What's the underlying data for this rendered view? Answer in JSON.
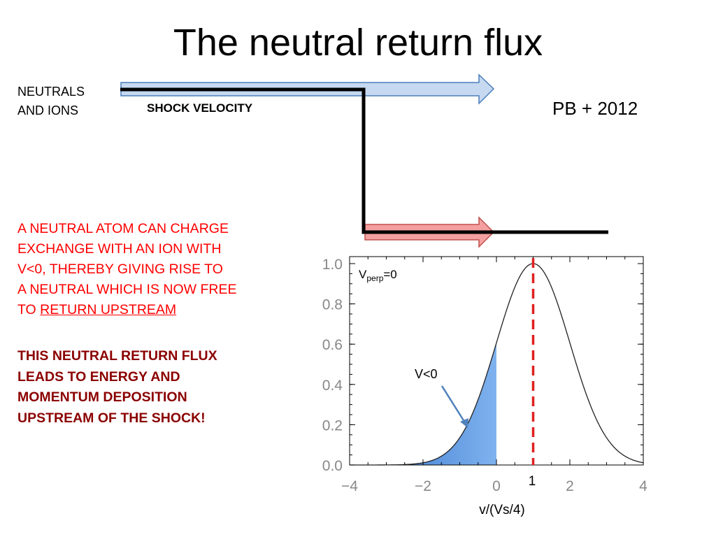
{
  "slide": {
    "title": "The neutral return flux",
    "neutrals_line1": "NEUTRALS",
    "neutrals_line2": "AND IONS",
    "shock_velocity": "SHOCK VELOCITY",
    "citation": "PB + 2012",
    "red_para_lines": [
      "A NEUTRAL ATOM CAN CHARGE",
      "EXCHANGE WITH AN ION WITH",
      "V<0, THEREBY GIVING RISE TO",
      "A NEUTRAL WHICH IS NOW FREE"
    ],
    "red_para_last_prefix": "TO ",
    "red_para_last_underlined": "RETURN UPSTREAM",
    "dark_para_lines": [
      "THIS NEUTRAL RETURN FLUX",
      "LEADS TO ENERGY AND",
      "MOMENTUM DEPOSITION",
      "UPSTREAM OF THE SHOCK!"
    ],
    "colors": {
      "title": "#000000",
      "red_text": "#ff0000",
      "dark_red_text": "#8b0000",
      "upper_arrow_fill": "#c6d9f1",
      "upper_arrow_stroke": "#4a7ebb",
      "lower_arrow_fill": "#f4a0a0",
      "lower_arrow_stroke": "#c0504d",
      "shaded_fill": "#3e7fd6",
      "peak_line": "#e02020",
      "annotation_arrow": "#4f81bd"
    }
  },
  "chart_data": {
    "type": "line",
    "description_free": true,
    "xlabel": "v/(Vs/4)",
    "ylabel": "",
    "xlim": [
      -4,
      4
    ],
    "ylim": [
      0,
      1.0
    ],
    "xticks": [
      -4,
      -2,
      0,
      2,
      4
    ],
    "xtick_labels": [
      "−4",
      "−2",
      "0",
      "2",
      "4"
    ],
    "yticks": [
      0.0,
      0.2,
      0.4,
      0.6,
      0.8,
      1.0
    ],
    "ytick_labels": [
      "0.0",
      "0.2",
      "0.4",
      "0.6",
      "0.8",
      "1.0"
    ],
    "curve": {
      "form": "gaussian",
      "center": 1,
      "amplitude": 1.0,
      "sigma": 1.0
    },
    "shaded_region": {
      "from": -4,
      "to": 0,
      "label": "V<0"
    },
    "vertical_line": {
      "x": 1,
      "style": "dashed",
      "label": "1"
    },
    "annotations": {
      "vperp_main": "V",
      "vperp_sub": "perp",
      "vperp_rest": "=0",
      "vless": "V<0"
    },
    "grid": false
  }
}
